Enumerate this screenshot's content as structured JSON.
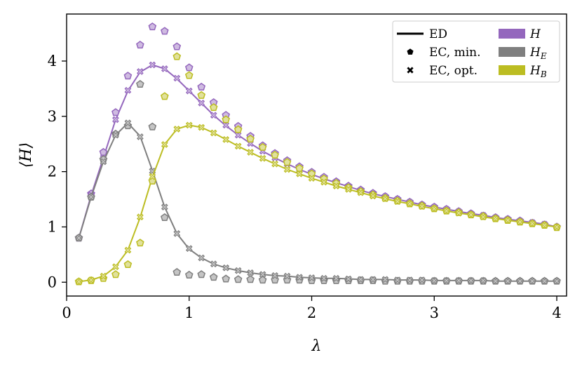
{
  "chart_data": {
    "type": "line",
    "title": "",
    "xlabel": "λ",
    "ylabel": "⟨H⟩",
    "xlim": [
      0,
      4.08
    ],
    "ylim": [
      -0.25,
      4.85
    ],
    "xticks": [
      0,
      1,
      2,
      3,
      4
    ],
    "yticks": [
      0,
      1,
      2,
      3,
      4
    ],
    "grid": false,
    "legend_position": "top-right",
    "legend": {
      "markers": [
        {
          "label": "ED",
          "style": "line"
        },
        {
          "label": "EC, min.",
          "style": "pentagon"
        },
        {
          "label": "EC, opt.",
          "style": "x"
        }
      ],
      "colors": [
        {
          "label": "H",
          "sub": "",
          "color": "#9467bd"
        },
        {
          "label": "H",
          "sub": "E",
          "color": "#7f7f7f"
        },
        {
          "label": "H",
          "sub": "B",
          "color": "#bcbd22"
        }
      ]
    },
    "x": [
      0.1,
      0.2,
      0.3,
      0.4,
      0.5,
      0.6,
      0.7,
      0.8,
      0.9,
      1.0,
      1.1,
      1.2,
      1.3,
      1.4,
      1.5,
      1.6,
      1.7,
      1.8,
      1.9,
      2.0,
      2.1,
      2.2,
      2.3,
      2.4,
      2.5,
      2.6,
      2.7,
      2.8,
      2.9,
      3.0,
      3.1,
      3.2,
      3.3,
      3.4,
      3.5,
      3.6,
      3.7,
      3.8,
      3.9,
      4.0
    ],
    "series": [
      {
        "name": "H",
        "color": "#9467bd",
        "ed": [
          0.8,
          1.57,
          2.25,
          2.94,
          3.46,
          3.8,
          3.93,
          3.86,
          3.68,
          3.46,
          3.24,
          3.02,
          2.83,
          2.66,
          2.51,
          2.37,
          2.25,
          2.14,
          2.04,
          1.95,
          1.87,
          1.8,
          1.73,
          1.66,
          1.6,
          1.55,
          1.5,
          1.45,
          1.4,
          1.36,
          1.32,
          1.28,
          1.24,
          1.21,
          1.17,
          1.14,
          1.11,
          1.08,
          1.05,
          1.0
        ],
        "ec_min": [
          0.8,
          1.6,
          2.35,
          3.07,
          3.73,
          4.29,
          4.62,
          4.54,
          4.26,
          3.88,
          3.53,
          3.25,
          3.02,
          2.82,
          2.64,
          2.47,
          2.33,
          2.2,
          2.09,
          1.99,
          1.9,
          1.82,
          1.74,
          1.67,
          1.61,
          1.55,
          1.5,
          1.45,
          1.4,
          1.36,
          1.32,
          1.28,
          1.24,
          1.2,
          1.17,
          1.14,
          1.11,
          1.07,
          1.04,
          1.0
        ],
        "ec_opt": [
          0.8,
          1.58,
          2.25,
          2.94,
          3.47,
          3.81,
          3.93,
          3.86,
          3.69,
          3.46,
          3.24,
          3.02,
          2.84,
          2.66,
          2.51,
          2.37,
          2.25,
          2.14,
          2.04,
          1.95,
          1.87,
          1.8,
          1.73,
          1.66,
          1.6,
          1.55,
          1.5,
          1.45,
          1.4,
          1.36,
          1.32,
          1.28,
          1.24,
          1.21,
          1.17,
          1.14,
          1.11,
          1.08,
          1.05,
          1.0
        ]
      },
      {
        "name": "H_E",
        "color": "#7f7f7f",
        "ed": [
          0.8,
          1.54,
          2.18,
          2.66,
          2.88,
          2.64,
          2.02,
          1.36,
          0.88,
          0.6,
          0.44,
          0.33,
          0.26,
          0.21,
          0.17,
          0.14,
          0.12,
          0.11,
          0.09,
          0.08,
          0.07,
          0.07,
          0.06,
          0.05,
          0.05,
          0.05,
          0.04,
          0.04,
          0.04,
          0.03,
          0.03,
          0.03,
          0.03,
          0.03,
          0.02,
          0.02,
          0.02,
          0.02,
          0.02,
          0.02
        ],
        "ec_min": [
          0.8,
          1.54,
          2.22,
          2.68,
          2.83,
          3.58,
          2.81,
          1.17,
          0.18,
          0.13,
          0.14,
          0.09,
          0.06,
          0.05,
          0.05,
          0.04,
          0.04,
          0.04,
          0.04,
          0.03,
          0.03,
          0.03,
          0.03,
          0.03,
          0.03,
          0.02,
          0.02,
          0.02,
          0.02,
          0.02,
          0.02,
          0.02,
          0.02,
          0.02,
          0.02,
          0.02,
          0.02,
          0.02,
          0.02,
          0.02
        ],
        "ec_opt": [
          0.8,
          1.54,
          2.18,
          2.66,
          2.88,
          2.63,
          2.01,
          1.36,
          0.88,
          0.61,
          0.44,
          0.33,
          0.26,
          0.21,
          0.17,
          0.14,
          0.12,
          0.11,
          0.09,
          0.08,
          0.07,
          0.07,
          0.06,
          0.05,
          0.05,
          0.05,
          0.04,
          0.04,
          0.04,
          0.03,
          0.03,
          0.03,
          0.03,
          0.03,
          0.02,
          0.02,
          0.02,
          0.02,
          0.02,
          0.02
        ]
      },
      {
        "name": "H_B",
        "color": "#bcbd22",
        "ed": [
          0.01,
          0.04,
          0.11,
          0.28,
          0.58,
          1.17,
          1.9,
          2.49,
          2.77,
          2.84,
          2.8,
          2.7,
          2.58,
          2.46,
          2.35,
          2.24,
          2.14,
          2.04,
          1.96,
          1.88,
          1.81,
          1.74,
          1.68,
          1.62,
          1.56,
          1.51,
          1.46,
          1.42,
          1.37,
          1.33,
          1.29,
          1.25,
          1.22,
          1.18,
          1.15,
          1.12,
          1.09,
          1.06,
          1.03,
          1.0
        ],
        "ec_min": [
          0.01,
          0.03,
          0.07,
          0.14,
          0.32,
          0.71,
          1.83,
          3.36,
          4.08,
          3.74,
          3.38,
          3.16,
          2.94,
          2.76,
          2.59,
          2.44,
          2.3,
          2.17,
          2.06,
          1.96,
          1.87,
          1.79,
          1.71,
          1.64,
          1.58,
          1.52,
          1.47,
          1.42,
          1.38,
          1.33,
          1.29,
          1.26,
          1.22,
          1.19,
          1.15,
          1.12,
          1.09,
          1.06,
          1.03,
          0.99
        ],
        "ec_opt": [
          0.01,
          0.04,
          0.11,
          0.28,
          0.58,
          1.18,
          1.91,
          2.49,
          2.77,
          2.84,
          2.8,
          2.7,
          2.58,
          2.46,
          2.35,
          2.24,
          2.14,
          2.04,
          1.96,
          1.88,
          1.81,
          1.74,
          1.68,
          1.62,
          1.56,
          1.51,
          1.46,
          1.42,
          1.37,
          1.33,
          1.29,
          1.25,
          1.22,
          1.18,
          1.15,
          1.12,
          1.09,
          1.06,
          1.03,
          1.0
        ]
      }
    ]
  }
}
